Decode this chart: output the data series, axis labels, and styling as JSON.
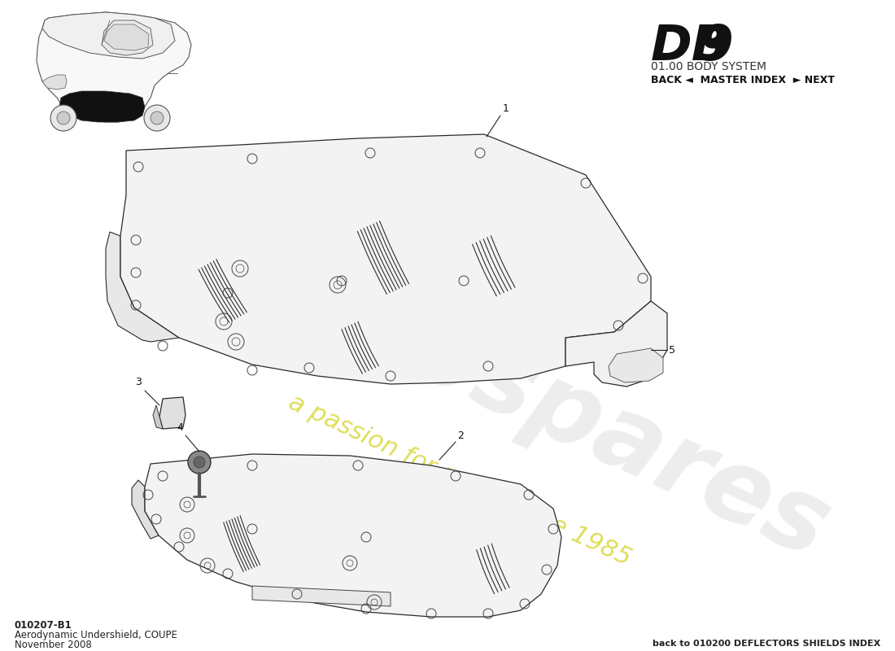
{
  "title_db9": "DB9",
  "title_system": "01.00 BODY SYSTEM",
  "nav_text": "BACK ◄  MASTER INDEX  ► NEXT",
  "part_number": "010207-B1",
  "part_name": "Aerodynamic Undershield, COUPE",
  "date": "November 2008",
  "footer_right": "back to 010200 DEFLECTORS SHIELDS INDEX",
  "bg_color": "#ffffff",
  "line_color": "#222222"
}
